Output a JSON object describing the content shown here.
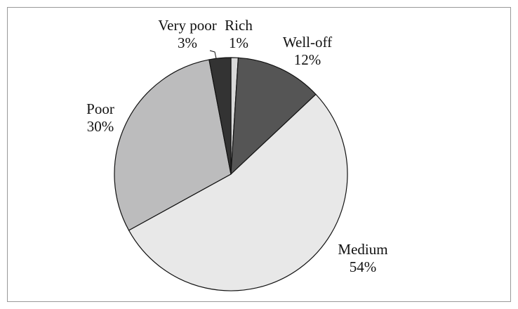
{
  "chart_data": {
    "type": "pie",
    "categories": [
      "Rich",
      "Well-off",
      "Medium",
      "Poor",
      "Very poor"
    ],
    "values": [
      1,
      12,
      54,
      30,
      3
    ],
    "value_labels": [
      "1%",
      "12%",
      "54%",
      "30%",
      "3%"
    ],
    "colors": [
      "#d9d9d9",
      "#555555",
      "#e8e8e8",
      "#bcbcbd",
      "#333333"
    ]
  }
}
